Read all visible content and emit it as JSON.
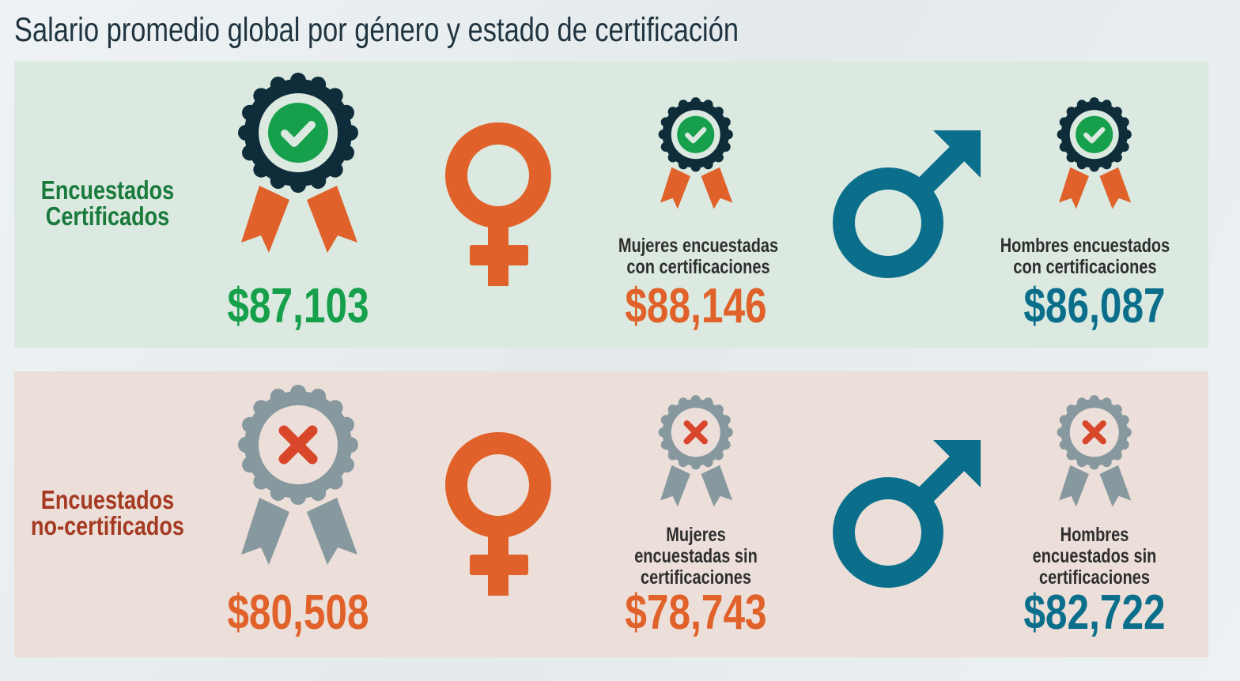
{
  "title": "Salario promedio global por género y estado de certificación",
  "colors": {
    "green": "#16a04c",
    "orange": "#e0622a",
    "teal": "#0b6f8c",
    "dark_navy": "#0e2c3a",
    "gray": "#87999f",
    "red_x": "#d9472b",
    "label_green": "#1a7a3c",
    "label_red": "#a53a22"
  },
  "rows": [
    {
      "label_line1": "Encuestados",
      "label_line2": "Certificados",
      "status_icon": "check-icon",
      "overall": {
        "value": "$87,103"
      },
      "women": {
        "desc_line1": "Mujeres encuestadas",
        "desc_line2": "con certificaciones",
        "desc_line3": "",
        "value": "$88,146"
      },
      "men": {
        "desc_line1": "Hombres encuestados",
        "desc_line2": "con certificaciones",
        "desc_line3": "",
        "value": "$86,087"
      }
    },
    {
      "label_line1": "Encuestados",
      "label_line2": "no-certificados",
      "status_icon": "x-icon",
      "overall": {
        "value": "$80,508"
      },
      "women": {
        "desc_line1": "Mujeres",
        "desc_line2": "encuestadas sin",
        "desc_line3": "certificaciones",
        "value": "$78,743"
      },
      "men": {
        "desc_line1": "Hombres",
        "desc_line2": "encuestados sin",
        "desc_line3": "certificaciones",
        "value": "$82,722"
      }
    }
  ]
}
